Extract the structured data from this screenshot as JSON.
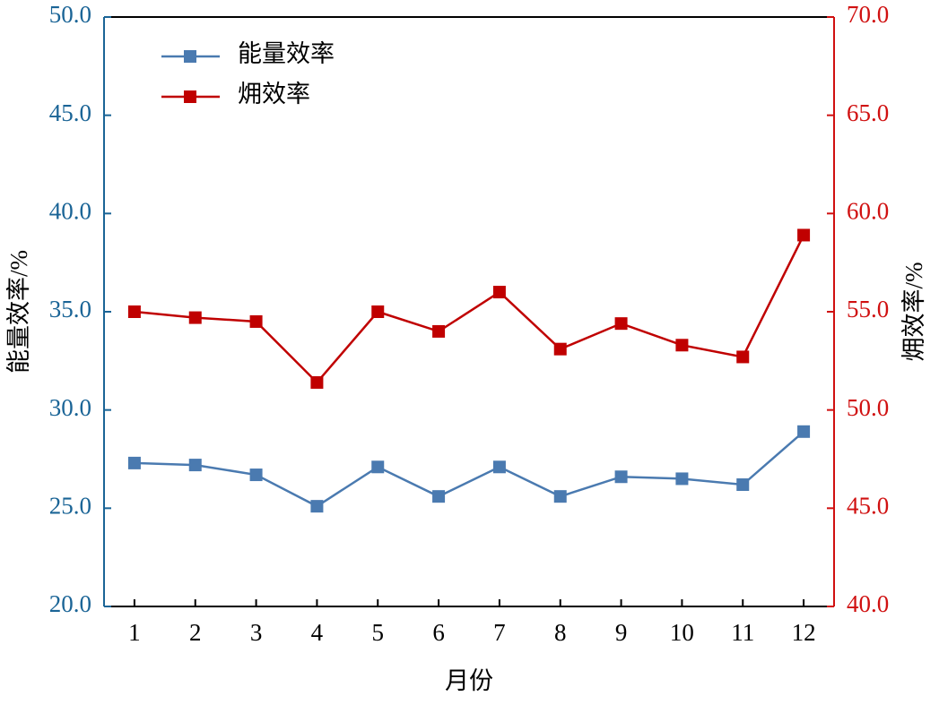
{
  "chart_data": {
    "type": "line",
    "xlabel": "月份",
    "ylabel": "能量效率/%",
    "y2label": "㶲效率/%",
    "categories": [
      "1",
      "2",
      "3",
      "4",
      "5",
      "6",
      "7",
      "8",
      "9",
      "10",
      "11",
      "12"
    ],
    "series": [
      {
        "name": "能量效率",
        "color": "#4a7ab0",
        "values": [
          27.3,
          27.2,
          26.7,
          25.1,
          27.1,
          25.6,
          27.1,
          25.6,
          26.6,
          26.5,
          26.2,
          28.9
        ]
      },
      {
        "name": "㶲效率",
        "color": "#c00000",
        "axis": "y2",
        "values": [
          55.0,
          54.7,
          54.5,
          51.4,
          55.0,
          54.0,
          56.0,
          53.1,
          54.4,
          53.3,
          52.7,
          58.9
        ]
      }
    ],
    "ylim": [
      20,
      50
    ],
    "yticks": [
      {
        "value": 20,
        "label": "20.0"
      },
      {
        "value": 25,
        "label": "25.0"
      },
      {
        "value": 30,
        "label": "30.0"
      },
      {
        "value": 35,
        "label": "35.0"
      },
      {
        "value": 40,
        "label": "40.0"
      },
      {
        "value": 45,
        "label": "45.0"
      },
      {
        "value": 50,
        "label": "50.0"
      }
    ],
    "y2lim": [
      40,
      70
    ],
    "y2ticks": [
      {
        "value": 40,
        "label": "40.0"
      },
      {
        "value": 45,
        "label": "45.0"
      },
      {
        "value": 50,
        "label": "50.0"
      },
      {
        "value": 55,
        "label": "55.0"
      },
      {
        "value": 60,
        "label": "60.0"
      },
      {
        "value": 65,
        "label": "65.0"
      },
      {
        "value": 70,
        "label": "70.0"
      }
    ],
    "y_axis_color": "#1a6496",
    "y2_axis_color": "#d01010",
    "legend": "top-left",
    "grid": false
  }
}
